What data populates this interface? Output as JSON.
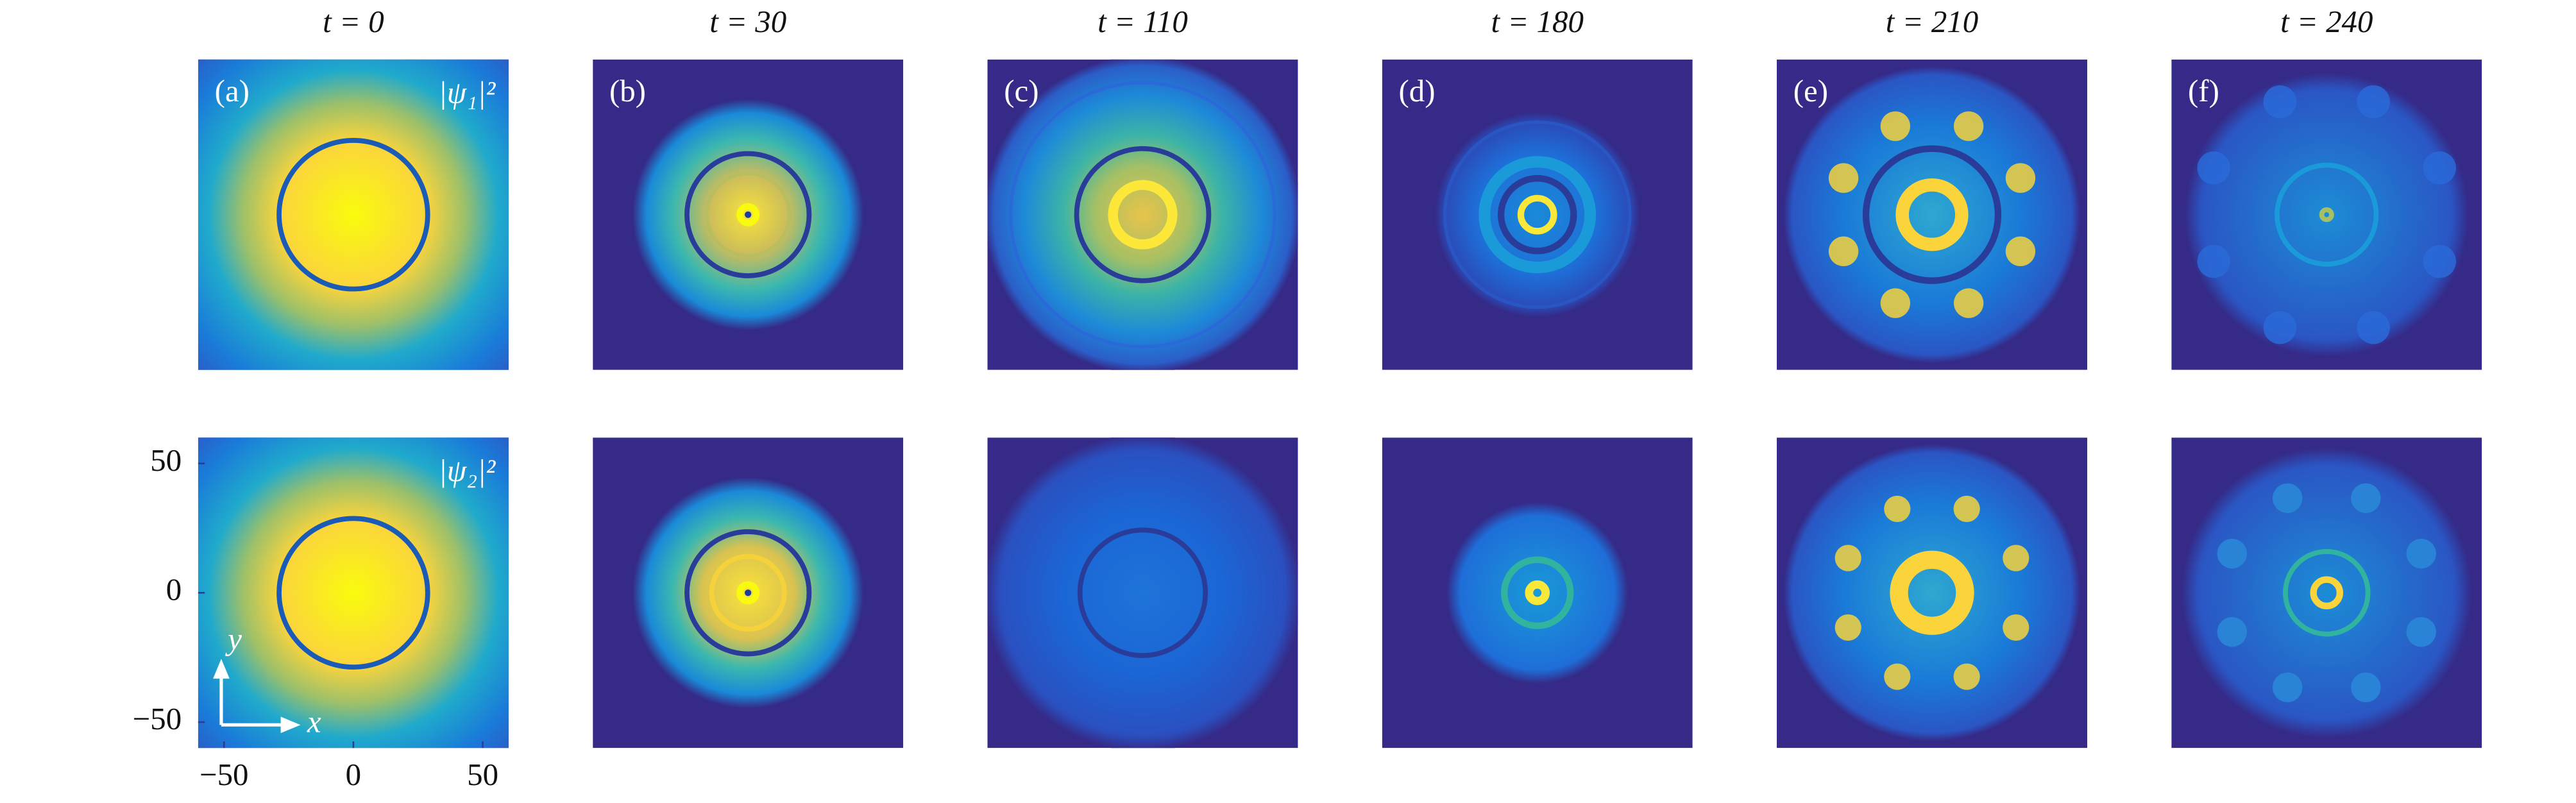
{
  "figure": {
    "columns": [
      "t = 0",
      "t = 30",
      "t = 110",
      "t = 180",
      "t = 210",
      "t = 240"
    ],
    "panels": [
      "(a)",
      "(b)",
      "(c)",
      "(d)",
      "(e)",
      "(f)"
    ],
    "row_labels": [
      "|ψ₁|²",
      "|ψ₂|²"
    ],
    "axes": {
      "xlim": [
        -60,
        60
      ],
      "ylim": [
        -60,
        60
      ],
      "xticks": [
        {
          "value": -50,
          "label": "−50"
        },
        0,
        50
      ],
      "yticks": [
        50,
        0,
        {
          "value": -50,
          "label": "−50"
        }
      ],
      "x_label": "x",
      "y_label": "y"
    }
  }
}
